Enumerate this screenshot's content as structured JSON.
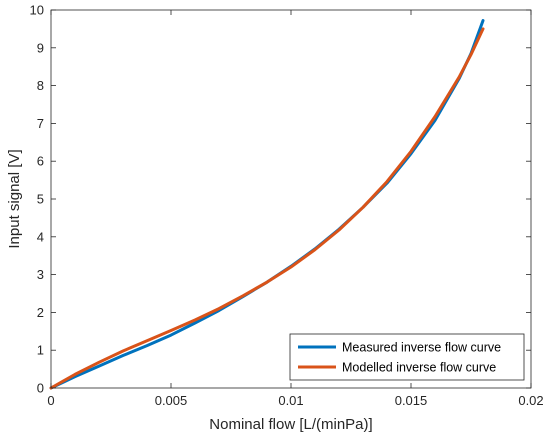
{
  "chart_data": {
    "type": "line",
    "xlabel": "Nominal flow [L/(minPa)]",
    "ylabel": "Input signal [V]",
    "xlim": [
      0,
      0.02
    ],
    "ylim": [
      0,
      10
    ],
    "xticks": [
      0,
      0.005,
      0.01,
      0.015,
      0.02
    ],
    "xtick_labels": [
      "0",
      "0.005",
      "0.01",
      "0.015",
      "0.02"
    ],
    "yticks": [
      0,
      1,
      2,
      3,
      4,
      5,
      6,
      7,
      8,
      9,
      10
    ],
    "ytick_labels": [
      "0",
      "1",
      "2",
      "3",
      "4",
      "5",
      "6",
      "7",
      "8",
      "9",
      "10"
    ],
    "grid": false,
    "legend_position": "bottom-right",
    "series": [
      {
        "name": "Measured inverse flow curve",
        "color": "#0072BD",
        "x": [
          0,
          0.001,
          0.002,
          0.003,
          0.004,
          0.005,
          0.006,
          0.007,
          0.008,
          0.009,
          0.01,
          0.011,
          0.012,
          0.013,
          0.014,
          0.015,
          0.016,
          0.017,
          0.0175,
          0.018
        ],
        "y": [
          0,
          0.3,
          0.58,
          0.86,
          1.12,
          1.4,
          1.72,
          2.05,
          2.42,
          2.8,
          3.22,
          3.68,
          4.2,
          4.78,
          5.42,
          6.2,
          7.08,
          8.18,
          8.85,
          9.72
        ]
      },
      {
        "name": "Modelled inverse flow curve",
        "color": "#D95319",
        "x": [
          0,
          0.001,
          0.002,
          0.003,
          0.004,
          0.005,
          0.006,
          0.007,
          0.008,
          0.009,
          0.01,
          0.011,
          0.012,
          0.013,
          0.014,
          0.015,
          0.016,
          0.017,
          0.0175,
          0.018
        ],
        "y": [
          0,
          0.36,
          0.68,
          0.98,
          1.25,
          1.52,
          1.8,
          2.1,
          2.44,
          2.8,
          3.2,
          3.66,
          4.18,
          4.78,
          5.46,
          6.26,
          7.18,
          8.22,
          8.82,
          9.5
        ]
      }
    ]
  }
}
